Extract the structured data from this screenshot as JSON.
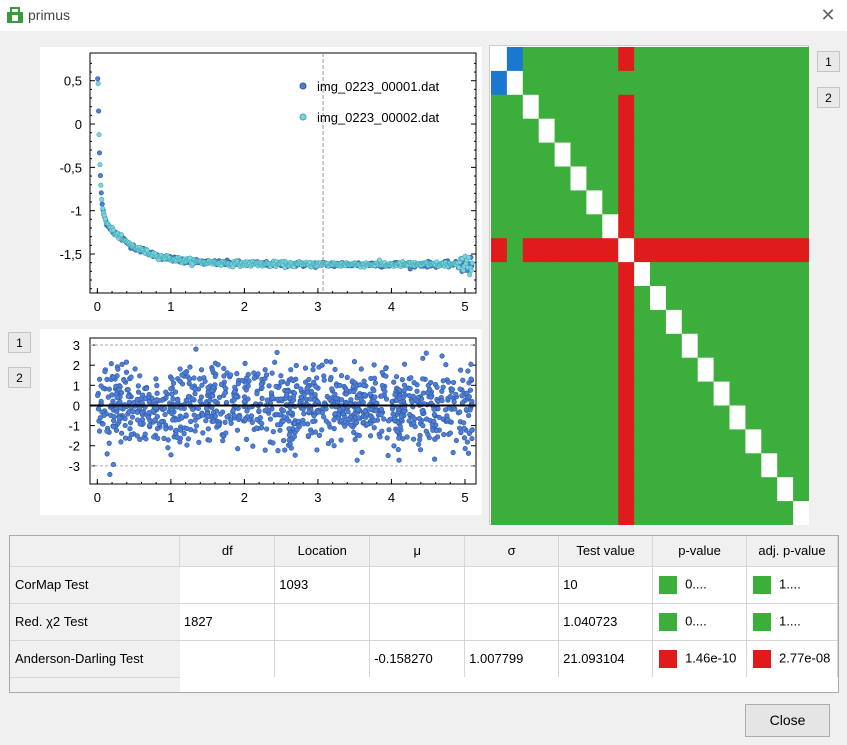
{
  "window": {
    "title": "primus",
    "close_glyph": "✕"
  },
  "colors": {
    "green": "#3cae3c",
    "red": "#e01b1b",
    "blue": "#1a78d0",
    "white": "#ffffff",
    "series1": "#4f7fd2",
    "series2": "#7fd4dc"
  },
  "top_plot": {
    "legend": [
      "img_0223_00001.dat",
      "img_0223_00002.dat"
    ],
    "y_ticks": [
      "0,5",
      "0",
      "-0,5",
      "-1",
      "-1,5"
    ],
    "x_ticks": [
      "0",
      "1",
      "2",
      "3",
      "4",
      "5"
    ],
    "cursor_x": 3.07
  },
  "bottom_plot": {
    "y_ticks": [
      "3",
      "2",
      "1",
      "0",
      "-1",
      "-2",
      "-3"
    ],
    "x_ticks": [
      "0",
      "1",
      "2",
      "3",
      "4",
      "5"
    ]
  },
  "heatmap": {
    "size": 20,
    "red_index": 8
  },
  "side_buttons_right": [
    "1",
    "2"
  ],
  "side_buttons_left": [
    "1",
    "2"
  ],
  "table": {
    "headers": [
      "df",
      "Location",
      "μ",
      "σ",
      "Test value",
      "p-value",
      "adj. p-value"
    ],
    "rows": [
      {
        "label": "CorMap Test",
        "df": "",
        "location": "1093",
        "mu": "",
        "sigma": "",
        "test_value": "10",
        "p_value": "0....",
        "p_color": "#3cae3c",
        "adj_p": "1....",
        "adj_color": "#3cae3c"
      },
      {
        "label": "Red. χ2 Test",
        "df": "1827",
        "location": "",
        "mu": "",
        "sigma": "",
        "test_value": "1.040723",
        "p_value": "0....",
        "p_color": "#3cae3c",
        "adj_p": "1....",
        "adj_color": "#3cae3c"
      },
      {
        "label": "Anderson-Darling Test",
        "df": "",
        "location": "",
        "mu": "-0.158270",
        "sigma": "1.007799",
        "test_value": "21.093104",
        "p_value": "1.46e-10",
        "p_color": "#e01b1b",
        "adj_p": "2.77e-08",
        "adj_color": "#e01b1b"
      }
    ]
  },
  "close_button": "Close"
}
